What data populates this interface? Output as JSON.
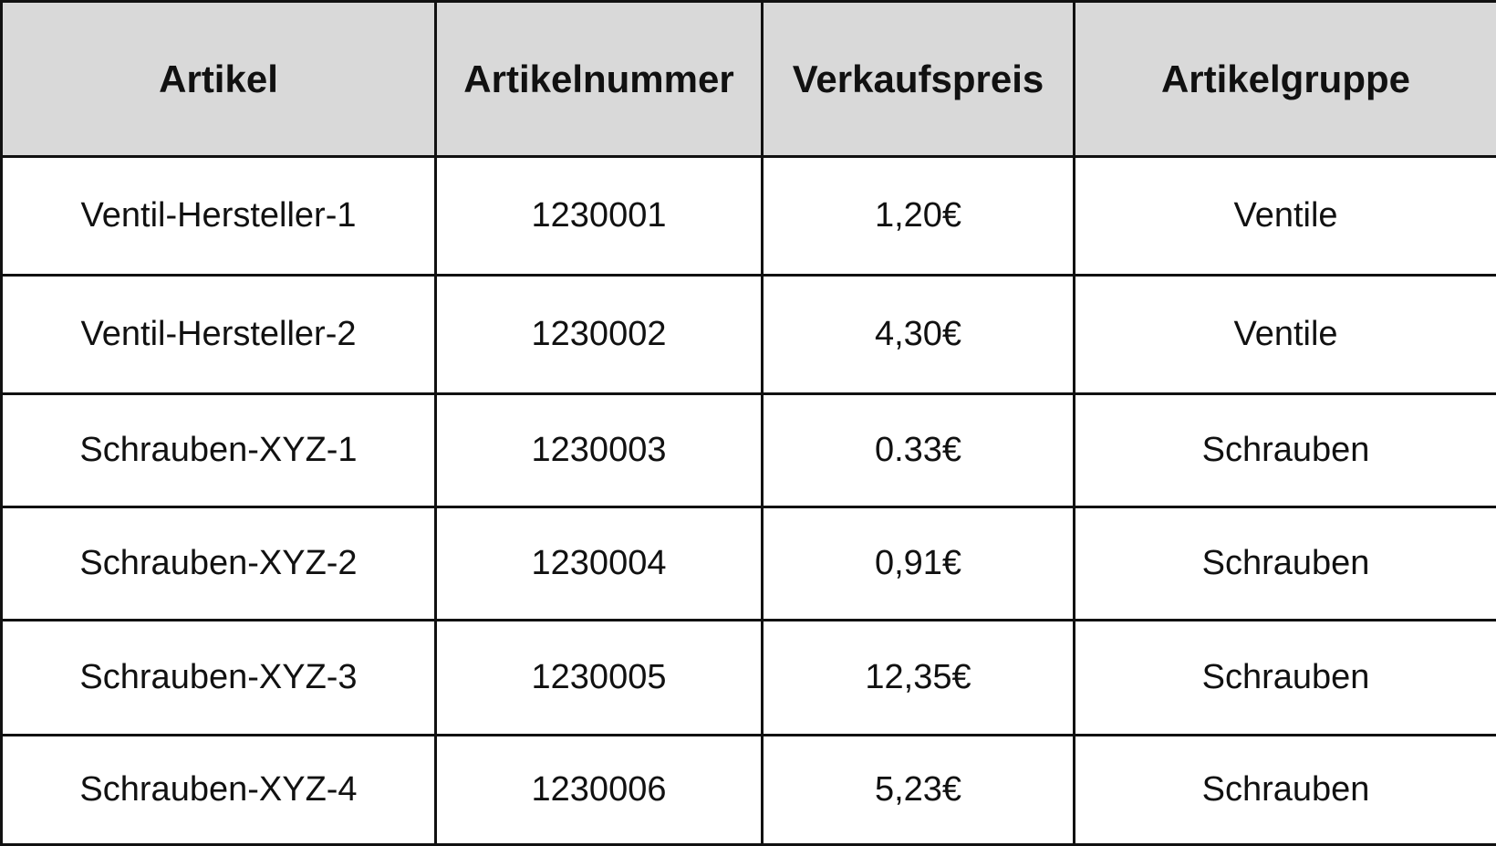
{
  "table": {
    "headers": [
      "Artikel",
      "Artikelnummer",
      "Verkaufspreis",
      "Artikelgruppe"
    ],
    "rows": [
      [
        "Ventil-Hersteller-1",
        "1230001",
        "1,20€",
        "Ventile"
      ],
      [
        "Ventil-Hersteller-2",
        "1230002",
        "4,30€",
        "Ventile"
      ],
      [
        "Schrauben-XYZ-1",
        "1230003",
        "0.33€",
        "Schrauben"
      ],
      [
        "Schrauben-XYZ-2",
        "1230004",
        "0,91€",
        "Schrauben"
      ],
      [
        "Schrauben-XYZ-3",
        "1230005",
        "12,35€",
        "Schrauben"
      ],
      [
        "Schrauben-XYZ-4",
        "1230006",
        "5,23€",
        "Schrauben"
      ]
    ]
  },
  "colors": {
    "header_background": "#d9d9d9",
    "border": "#111111",
    "text": "#111111",
    "background": "#ffffff"
  }
}
